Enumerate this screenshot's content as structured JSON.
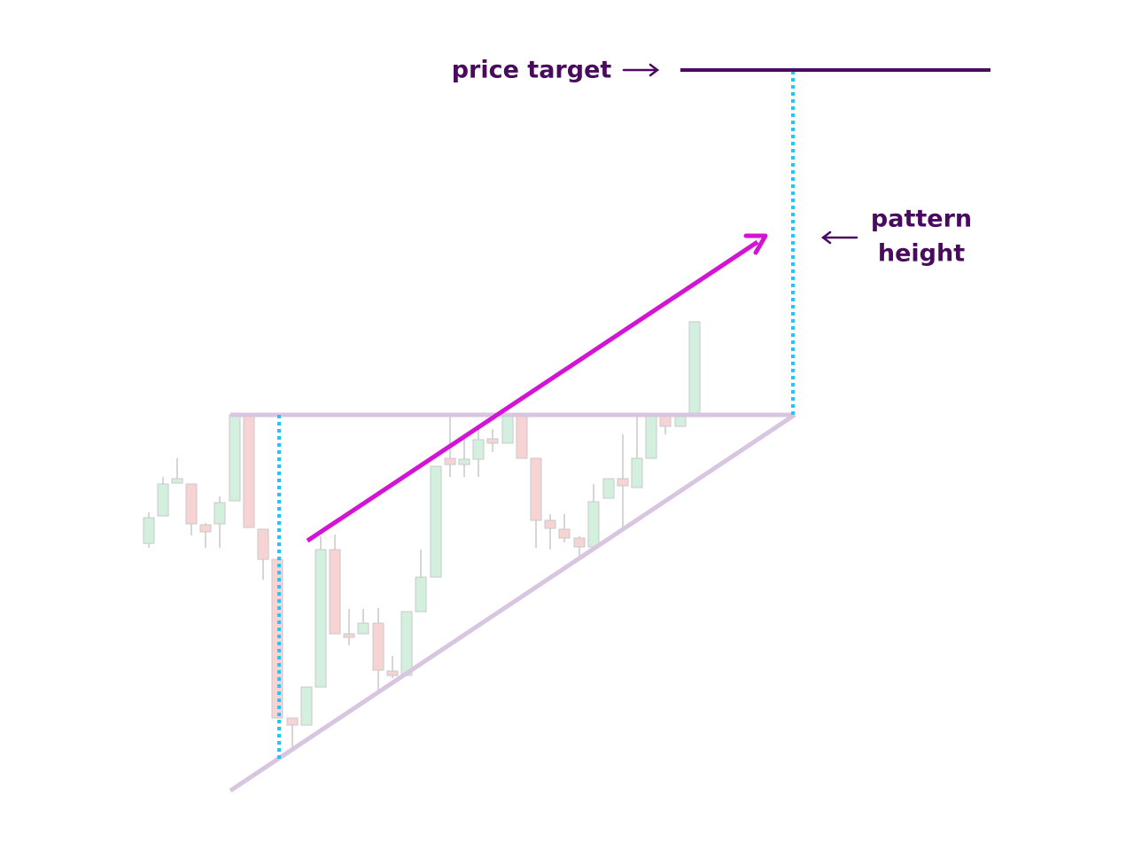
{
  "labels": {
    "price_target": "price target",
    "pattern_height": [
      "pattern",
      "height"
    ]
  }
}
